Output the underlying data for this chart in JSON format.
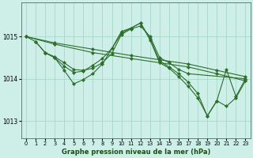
{
  "title": "Graphe pression niveau de la mer (hPa)",
  "background_color": "#ceeee8",
  "grid_color": "#a8d8c8",
  "line_color": "#2d6e2d",
  "xlim": [
    -0.5,
    23.5
  ],
  "ylim": [
    1012.6,
    1015.8
  ],
  "yticks": [
    1013,
    1014,
    1015
  ],
  "xticks": [
    0,
    1,
    2,
    3,
    4,
    5,
    6,
    7,
    8,
    9,
    10,
    11,
    12,
    13,
    14,
    15,
    16,
    17,
    18,
    19,
    20,
    21,
    22,
    23
  ],
  "series": [
    {
      "x": [
        0,
        3,
        7,
        11,
        14,
        17,
        20,
        23
      ],
      "y": [
        1015.0,
        1014.85,
        1014.7,
        1014.55,
        1014.45,
        1014.35,
        1014.2,
        1014.05
      ]
    },
    {
      "x": [
        0,
        3,
        7,
        11,
        14,
        17,
        20,
        23
      ],
      "y": [
        1015.0,
        1014.82,
        1014.62,
        1014.48,
        1014.38,
        1014.28,
        1014.12,
        1013.95
      ]
    },
    {
      "x": [
        0,
        1,
        2,
        3,
        4,
        5,
        6,
        7,
        8,
        9,
        10,
        11,
        12,
        13,
        14,
        15,
        16,
        17,
        23
      ],
      "y": [
        1015.0,
        1014.88,
        1014.62,
        1014.52,
        1014.38,
        1014.22,
        1014.2,
        1014.25,
        1014.38,
        1014.6,
        1015.05,
        1015.18,
        1015.25,
        1015.0,
        1014.5,
        1014.38,
        1014.22,
        1014.12,
        1014.0
      ]
    },
    {
      "x": [
        1,
        2,
        3,
        4,
        5,
        6,
        7,
        8,
        9,
        10,
        11,
        12,
        13,
        14,
        15,
        16,
        17,
        18,
        19,
        20,
        21,
        22,
        23
      ],
      "y": [
        1014.88,
        1014.62,
        1014.5,
        1014.3,
        1014.15,
        1014.18,
        1014.32,
        1014.48,
        1014.72,
        1015.12,
        1015.2,
        1015.32,
        1014.95,
        1014.42,
        1014.28,
        1014.12,
        1013.92,
        1013.65,
        1013.12,
        1013.48,
        1014.22,
        1013.58,
        1014.0
      ]
    },
    {
      "x": [
        2,
        3,
        4,
        5,
        6,
        7,
        8,
        10,
        11,
        12,
        13,
        14,
        15,
        16,
        17,
        18,
        19,
        20,
        21,
        22,
        23
      ],
      "y": [
        1014.62,
        1014.5,
        1014.2,
        1013.88,
        1013.98,
        1014.12,
        1014.35,
        1015.08,
        1015.2,
        1015.32,
        1014.92,
        1014.38,
        1014.25,
        1014.05,
        1013.82,
        1013.55,
        1013.12,
        1013.48,
        1013.35,
        1013.55,
        1013.95
      ]
    }
  ]
}
